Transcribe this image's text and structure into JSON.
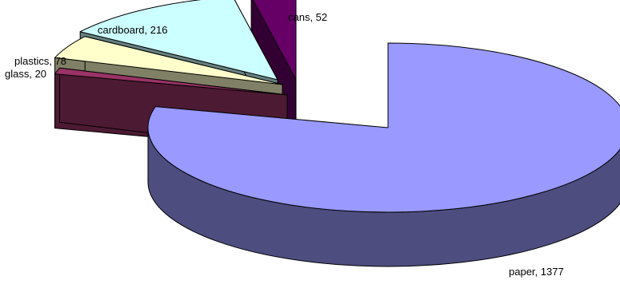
{
  "chart_data": {
    "type": "pie",
    "style": "3d-exploded",
    "title": "",
    "legend": "none",
    "slices": [
      {
        "category": "paper",
        "value": 1377,
        "label": "paper, 1377",
        "color": "#9999FF",
        "side_color": "#4D4D80"
      },
      {
        "category": "glass",
        "value": 20,
        "label": "glass, 20",
        "color": "#993366",
        "side_color": "#4D1A33"
      },
      {
        "category": "plastics",
        "value": 78,
        "label": "plastics, 78",
        "color": "#FFFFCC",
        "side_color": "#808066"
      },
      {
        "category": "cardboard",
        "value": 216,
        "label": "cardboard, 216",
        "color": "#CCFFFF",
        "side_color": "#668080"
      },
      {
        "category": "cans",
        "value": 52,
        "label": "cans, 52",
        "color": "#660066",
        "side_color": "#330033"
      }
    ]
  }
}
